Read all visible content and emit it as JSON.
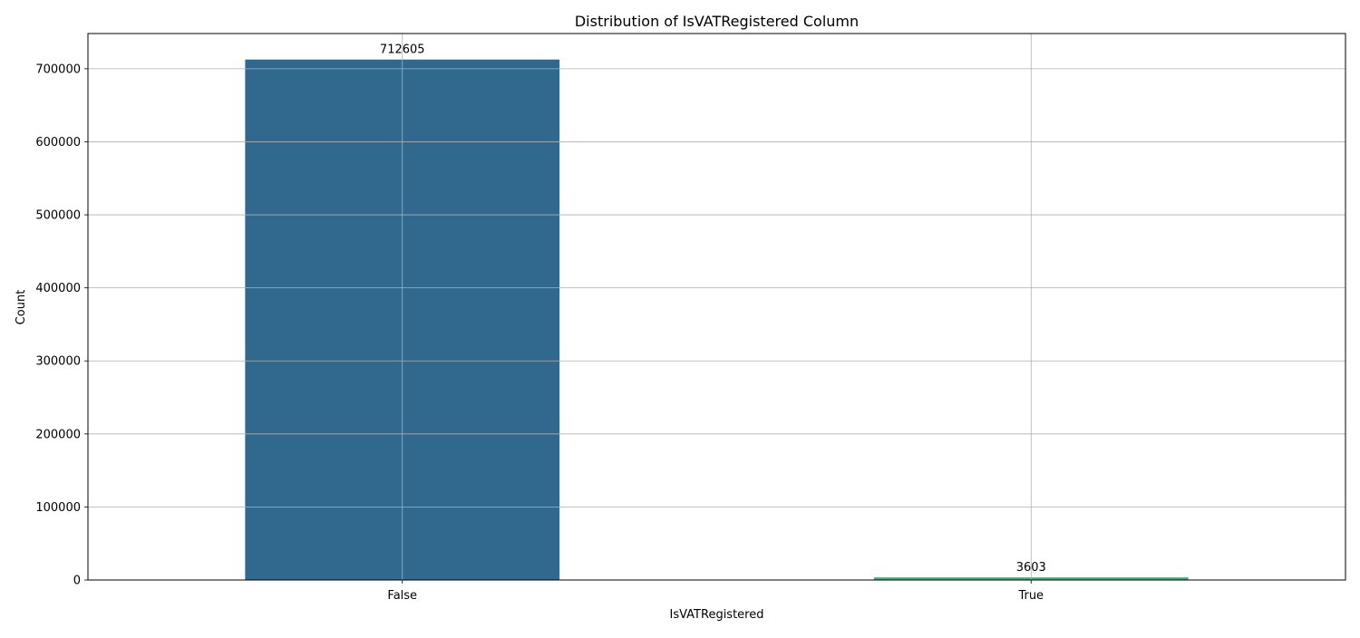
{
  "chart_data": {
    "type": "bar",
    "title": "Distribution of IsVATRegistered Column",
    "xlabel": "IsVATRegistered",
    "ylabel": "Count",
    "categories": [
      "False",
      "True"
    ],
    "values": [
      712605,
      3603
    ],
    "data_labels": [
      "712605",
      "3603"
    ],
    "bar_colors": [
      "#31688e",
      "#35b779"
    ],
    "ylim": [
      0,
      748235
    ],
    "yticks": [
      0,
      100000,
      200000,
      300000,
      400000,
      500000,
      600000,
      700000
    ],
    "ytick_labels": [
      "0",
      "100000",
      "200000",
      "300000",
      "400000",
      "500000",
      "600000",
      "700000"
    ],
    "grid": true,
    "legend": "none"
  }
}
